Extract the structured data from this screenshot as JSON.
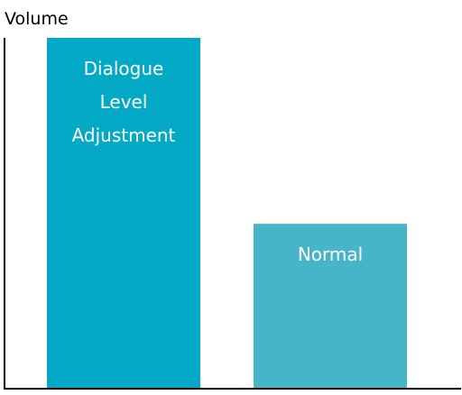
{
  "chart_data": {
    "type": "bar",
    "ylabel": "Volume",
    "categories": [
      "Dialogue Level Adjustment",
      "Normal"
    ],
    "values": [
      100,
      47
    ],
    "ylim": [
      0,
      100
    ],
    "grid": false,
    "legend": "none",
    "bar_labels": [
      [
        "Dialogue",
        "Level",
        "Adjustment"
      ],
      [
        "Normal"
      ]
    ],
    "colors": [
      "#04A9C5",
      "#46B5C8"
    ],
    "label_color": "#FFFFFF",
    "axis_color": "#000000"
  }
}
